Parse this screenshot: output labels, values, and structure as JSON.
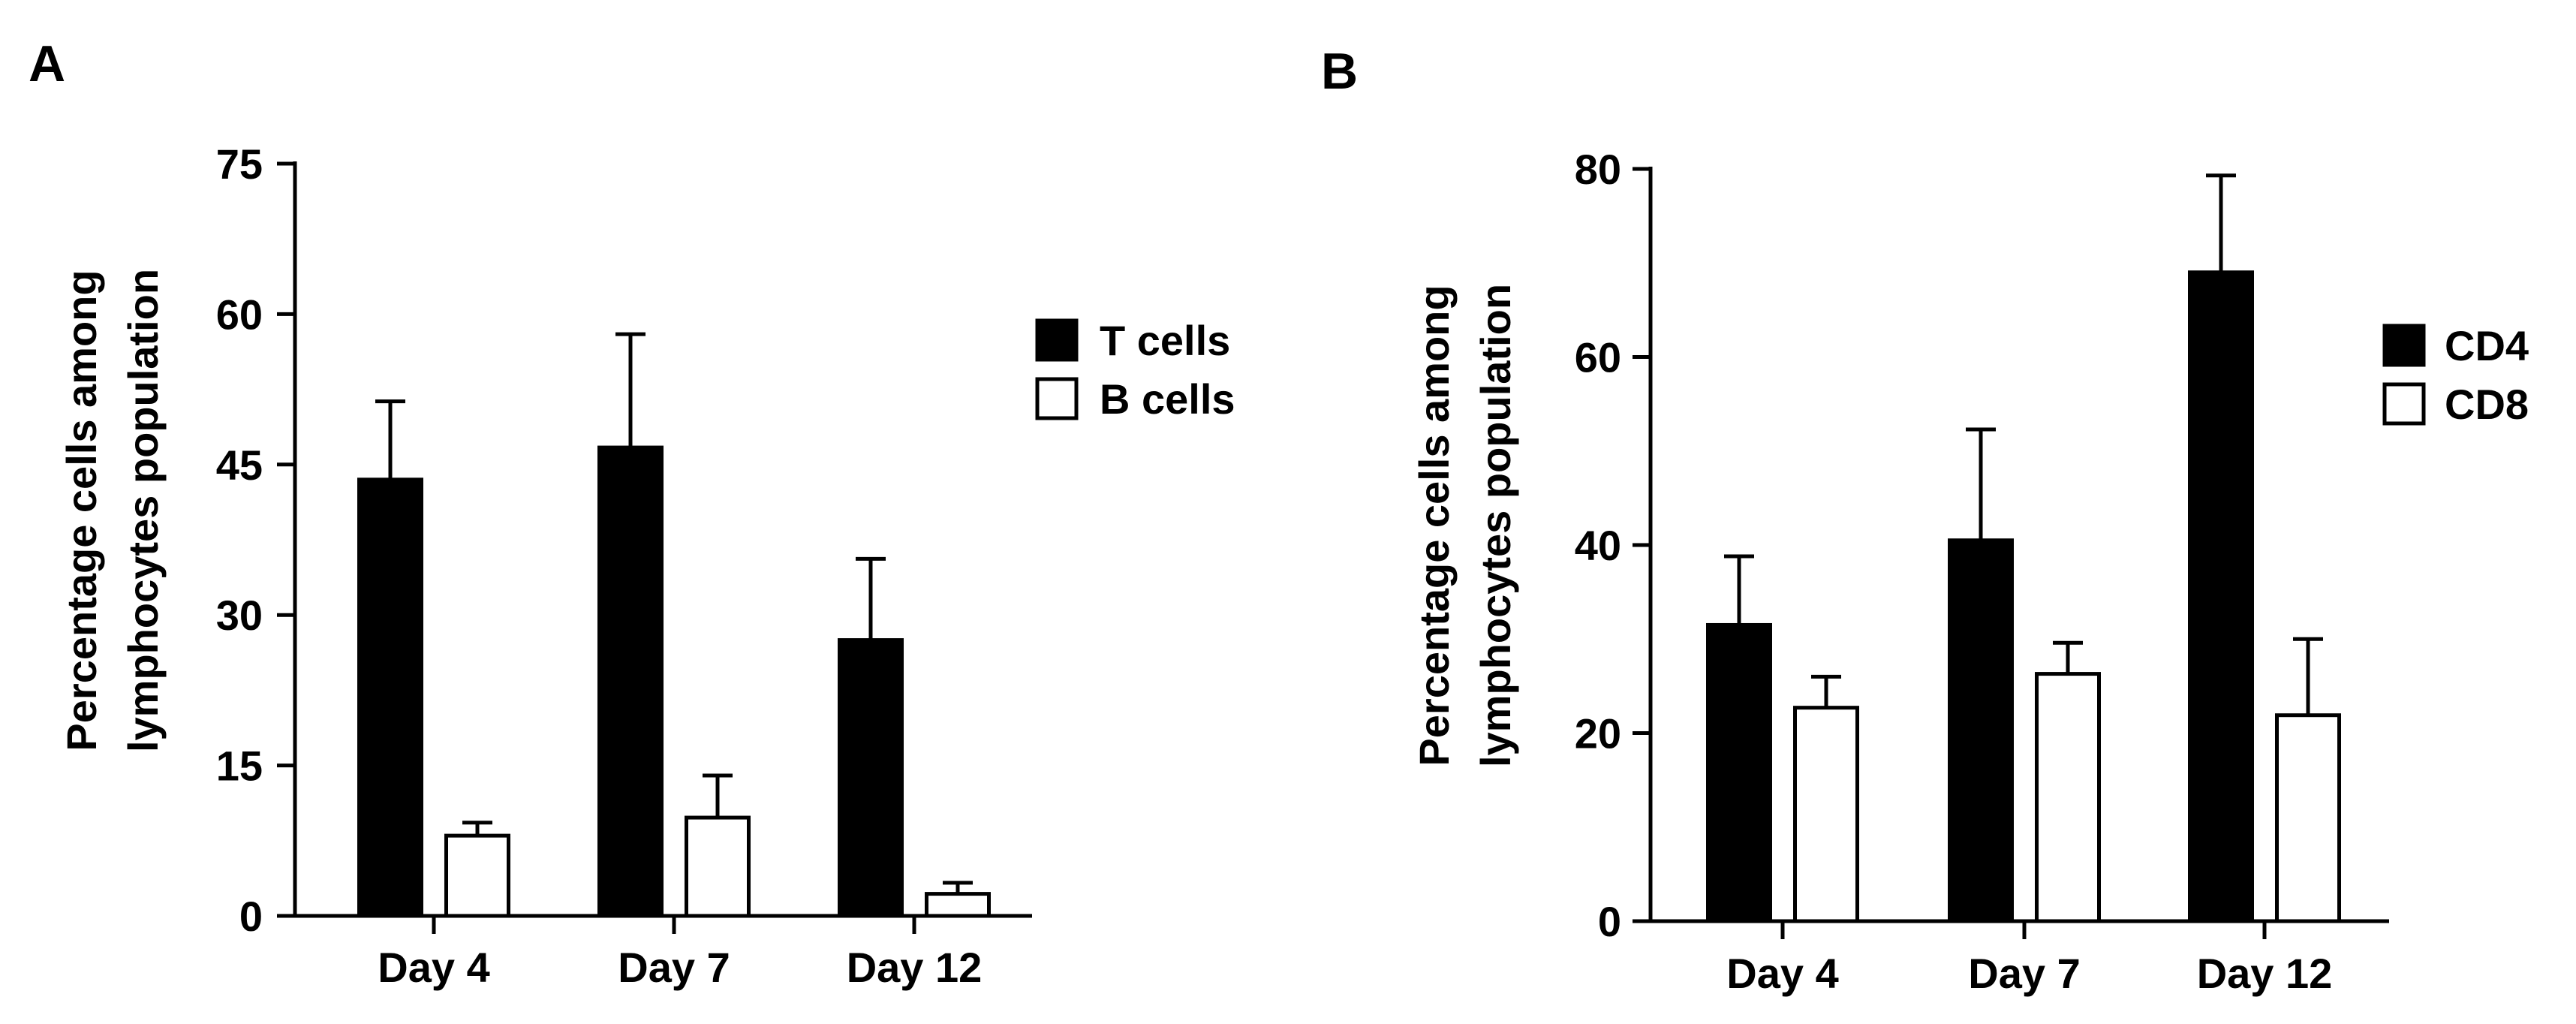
{
  "panels": [
    {
      "label": "A"
    },
    {
      "label": "B"
    }
  ],
  "chart_data": [
    {
      "type": "bar",
      "panel": "A",
      "ylabel": [
        "Percentage cells among",
        "lymphocytes population"
      ],
      "xlabel": "",
      "categories": [
        "Day 4",
        "Day 7",
        "Day 12"
      ],
      "ylim": [
        0,
        75
      ],
      "yticks": [
        0,
        15,
        30,
        45,
        60,
        75
      ],
      "ytick_labels": [
        "0",
        "15",
        "30",
        "45",
        "60",
        "75"
      ],
      "series": [
        {
          "name": "T cells",
          "values": [
            43.5,
            46.7,
            27.5
          ],
          "errors": [
            7.8,
            11.3,
            8.1
          ],
          "fill": "#000000"
        },
        {
          "name": "B cells",
          "values": [
            8.0,
            9.8,
            2.2
          ],
          "errors": [
            1.3,
            4.2,
            1.1
          ],
          "fill": "#ffffff"
        }
      ],
      "legend": "right",
      "grid": false
    },
    {
      "type": "bar",
      "panel": "B",
      "ylabel": [
        "Percentage cells among",
        "lymphocytes population"
      ],
      "xlabel": "",
      "categories": [
        "Day 4",
        "Day 7",
        "Day 12"
      ],
      "ylim": [
        0,
        80
      ],
      "yticks": [
        0,
        20,
        40,
        60,
        80
      ],
      "ytick_labels": [
        "0",
        "20",
        "40",
        "60",
        "80"
      ],
      "series": [
        {
          "name": "CD4",
          "values": [
            31.5,
            40.5,
            69.0
          ],
          "errors": [
            7.3,
            11.8,
            10.3
          ],
          "fill": "#000000"
        },
        {
          "name": "CD8",
          "values": [
            22.7,
            26.3,
            21.9
          ],
          "errors": [
            3.3,
            3.3,
            8.1
          ],
          "fill": "#ffffff"
        }
      ],
      "legend": "right",
      "grid": false
    }
  ]
}
